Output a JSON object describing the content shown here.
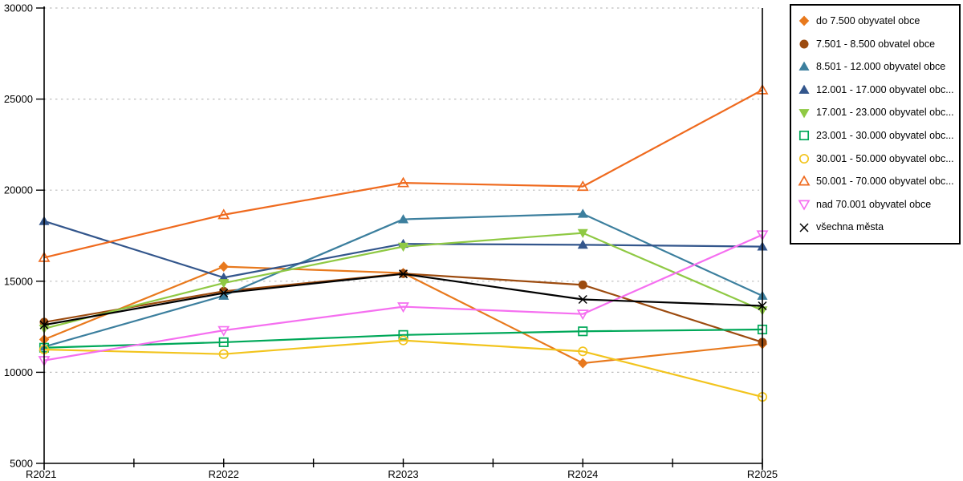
{
  "chart_data": {
    "type": "line",
    "title": "",
    "xlabel": "",
    "ylabel": "",
    "categories": [
      "R2021",
      "R2022",
      "R2023",
      "R2024",
      "R2025"
    ],
    "ylim": [
      5000,
      30000
    ],
    "yticks": [
      5000,
      10000,
      15000,
      20000,
      25000,
      30000
    ],
    "grid": "horizontal-dotted",
    "minor_ticks_between_categories": true,
    "legend_position": "right",
    "series": [
      {
        "label": "do 7.500 obyvatel obce",
        "color": "#E8791D",
        "marker": "diamond",
        "fill": "filled",
        "values": [
          11800,
          15800,
          15450,
          10500,
          11550
        ]
      },
      {
        "label": "7.501 - 8.500 obvatel obce",
        "color": "#9C4B0F",
        "marker": "circle",
        "fill": "filled",
        "values": [
          12750,
          14450,
          15420,
          14800,
          11650
        ]
      },
      {
        "label": "8.501 - 12.000 obyvatel obce",
        "color": "#3C7F9E",
        "marker": "triangle-up",
        "fill": "filled",
        "values": [
          11400,
          14200,
          18400,
          18700,
          14200
        ]
      },
      {
        "label": "12.001 - 17.000 obyvatel obc...",
        "color": "#33568C",
        "marker": "triangle-up",
        "fill": "filled",
        "values": [
          18300,
          15200,
          17050,
          17000,
          16900
        ]
      },
      {
        "label": "17.001 - 23.000 obyvatel obc...",
        "color": "#8FC944",
        "marker": "triangle-down",
        "fill": "filled",
        "values": [
          12400,
          14900,
          16900,
          17650,
          13400
        ]
      },
      {
        "label": "23.001 - 30.000 obyvatel obc...",
        "color": "#00A859",
        "marker": "square",
        "fill": "open",
        "values": [
          11350,
          11650,
          12050,
          12250,
          12350
        ]
      },
      {
        "label": "30.001 - 50.000 obyvatel obc...",
        "color": "#F2C41D",
        "marker": "circle",
        "fill": "open",
        "values": [
          11250,
          11000,
          11750,
          11150,
          8650
        ]
      },
      {
        "label": "50.001 - 70.000 obyvatel obc...",
        "color": "#EF6A1E",
        "marker": "triangle-up",
        "fill": "open",
        "values": [
          16300,
          18650,
          20400,
          20200,
          25500
        ]
      },
      {
        "label": "nad 70.001 obyvatel obce",
        "color": "#F56FF0",
        "marker": "triangle-down",
        "fill": "open",
        "values": [
          10650,
          12300,
          13600,
          13200,
          17550
        ]
      },
      {
        "label": "všechna města",
        "color": "#000000",
        "marker": "x",
        "fill": "open",
        "values": [
          12600,
          14350,
          15400,
          14000,
          13650
        ]
      }
    ]
  },
  "colors": {
    "background": "#FFFFFF",
    "axis": "#000000",
    "gridline": "#BDBDBD",
    "legend_border": "#000000"
  }
}
